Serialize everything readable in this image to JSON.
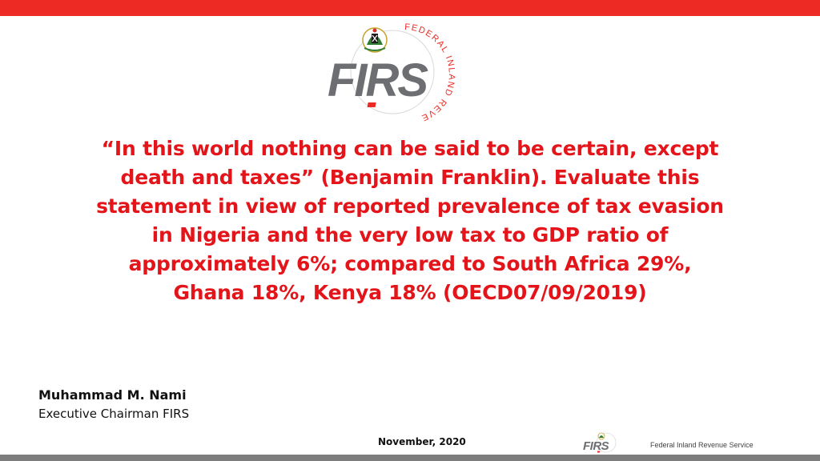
{
  "logo": {
    "wordmark": "FIRS",
    "ring_text": "FEDERAL INLAND REVENUE SERVICE",
    "icon": "nigeria-coat-of-arms"
  },
  "quote": {
    "lines": [
      "“In this world nothing can be said to be certain, except",
      "death and taxes” (Benjamin Franklin). Evaluate this",
      "statement in view of reported prevalence of tax evasion",
      "in Nigeria and the very low tax to GDP ratio of",
      "approximately 6%; compared to South Africa 29%,",
      "Ghana 18%, Kenya 18% (OECD07/09/2019)"
    ]
  },
  "author": {
    "name": "Muhammad M. Nami",
    "title": "Executive Chairman FIRS"
  },
  "footer": {
    "date": "November, 2020",
    "org": "Federal Inland Revenue Service",
    "logo_wordmark": "FIRS"
  },
  "colors": {
    "accent_red": "#ee2a24",
    "quote_red": "#e3151a",
    "logo_gray": "#6d6e71",
    "bottom_gray": "#7d7d7d"
  }
}
